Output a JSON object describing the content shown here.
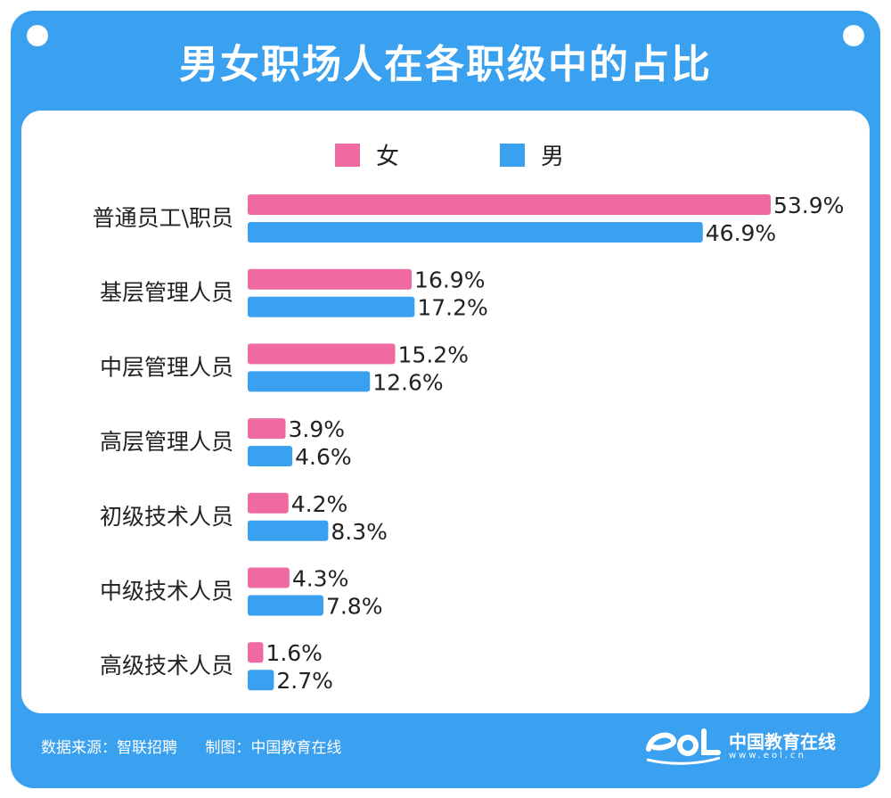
{
  "header": {
    "title": "男女职场人在各职级中的占比"
  },
  "footer": {
    "source": "数据来源：智联招聘",
    "maker": "制图：中国教育在线",
    "brand": "中国教育在线",
    "brand_url": "www.eol.cn"
  },
  "colors": {
    "female": "#ee6aa0",
    "male": "#3aa0f0",
    "frame": "#3aa0f0"
  },
  "chart_data": {
    "type": "bar",
    "orientation": "horizontal",
    "title": "男女职场人在各职级中的占比",
    "categories": [
      "普通员工\\职员",
      "基层管理人员",
      "中层管理人员",
      "高层管理人员",
      "初级技术人员",
      "中级技术人员",
      "高级技术人员"
    ],
    "series": [
      {
        "name": "女",
        "values": [
          53.9,
          16.9,
          15.2,
          3.9,
          4.2,
          4.3,
          1.6
        ],
        "labels": [
          "53.9%",
          "16.9%",
          "15.2%",
          "3.9%",
          "4.2%",
          "4.3%",
          "1.6%"
        ],
        "color": "#ee6aa0"
      },
      {
        "name": "男",
        "values": [
          46.9,
          17.2,
          12.6,
          4.6,
          8.3,
          7.8,
          2.7
        ],
        "labels": [
          "46.9%",
          "17.2%",
          "12.6%",
          "4.6%",
          "8.3%",
          "7.8%",
          "2.7%"
        ],
        "color": "#3aa0f0"
      }
    ],
    "xlim": [
      0,
      60
    ],
    "legend": "top-center",
    "grid": false
  }
}
